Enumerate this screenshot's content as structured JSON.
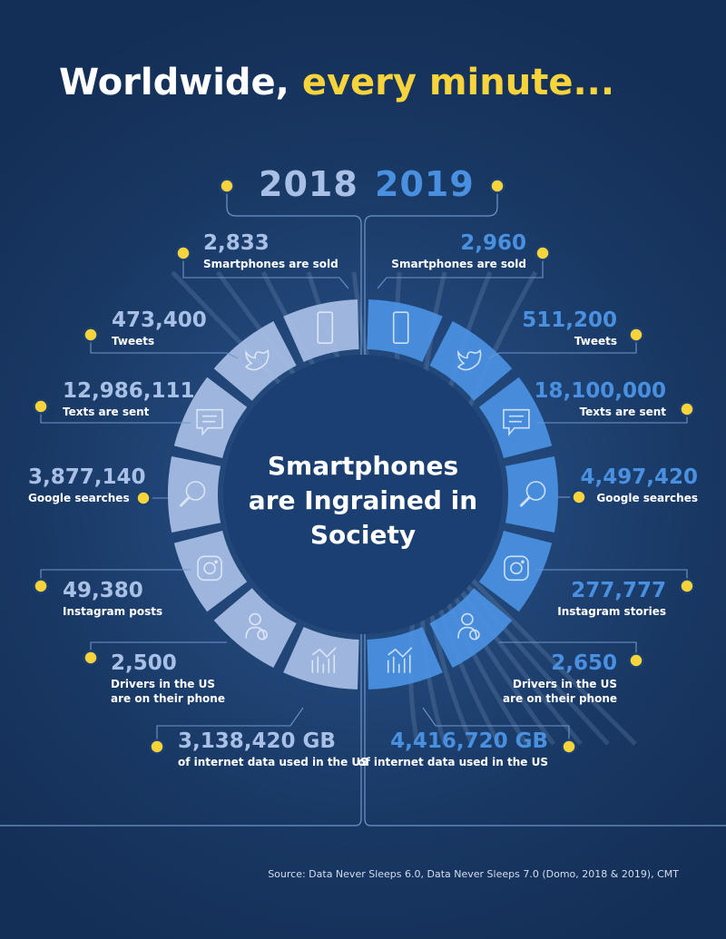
{
  "title": {
    "part1": "Worldwide,",
    "part2": "every minute..."
  },
  "center_text": "Smartphones are Ingrained in Society",
  "source": "Source: Data Never Sleeps 6.0, Data Never Sleeps 7.0 (Domo, 2018 & 2019), CMT",
  "colors": {
    "year_2018": "#a9c0e6",
    "year_2019": "#4a90e0",
    "accent": "#f7d33c",
    "background": "#17345f"
  },
  "chart_data": {
    "type": "table",
    "columns": [
      "2018",
      "2019"
    ],
    "rows": [
      {
        "icon": "smartphone-icon",
        "label_2018": "Smartphones are sold",
        "label_2019": "Smartphones are sold",
        "value_2018": "2,833",
        "value_2019": "2,960"
      },
      {
        "icon": "twitter-bird-icon",
        "label_2018": "Tweets",
        "label_2019": "Tweets",
        "value_2018": "473,400",
        "value_2019": "511,200"
      },
      {
        "icon": "text-message-icon",
        "label_2018": "Texts are sent",
        "label_2019": "Texts are sent",
        "value_2018": "12,986,111",
        "value_2019": "18,100,000"
      },
      {
        "icon": "search-icon",
        "label_2018": "Google searches",
        "label_2019": "Google searches",
        "value_2018": "3,877,140",
        "value_2019": "4,497,420"
      },
      {
        "icon": "instagram-icon",
        "label_2018": "Instagram posts",
        "label_2019": "Instagram stories",
        "value_2018": "49,380",
        "value_2019": "277,777"
      },
      {
        "icon": "driver-icon",
        "label_2018": "Drivers in the US\nare on their phone",
        "label_2019": "Drivers in the US\nare on their phone",
        "value_2018": "2,500",
        "value_2019": "2,650"
      },
      {
        "icon": "data-chart-icon",
        "label_2018": "of internet data used in the US",
        "label_2019": "of internet data used in the US",
        "value_2018": "3,138,420 GB",
        "value_2019": "4,416,720 GB"
      }
    ]
  }
}
